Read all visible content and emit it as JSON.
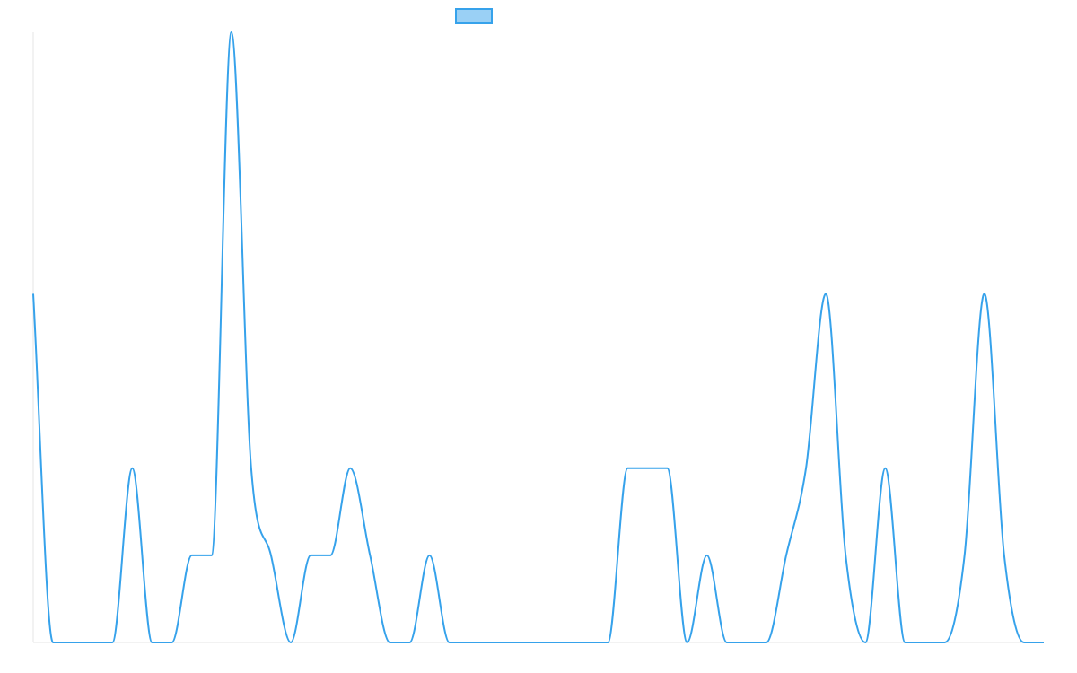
{
  "chart_data": {
    "type": "line",
    "title": "",
    "xlabel": "",
    "ylabel": "",
    "ylim": [
      0,
      7
    ],
    "grid": false,
    "legend_position": "top-center",
    "x": [
      0,
      1,
      2,
      3,
      4,
      5,
      6,
      7,
      8,
      9,
      10,
      11,
      12,
      13,
      14,
      15,
      16,
      17,
      18,
      19,
      20,
      21,
      22,
      23,
      24,
      25,
      26,
      27,
      28,
      29,
      30,
      31,
      32,
      33,
      34,
      35,
      36,
      37,
      38,
      39,
      40,
      41,
      42,
      43,
      44,
      45,
      46,
      47,
      48,
      49,
      50,
      51
    ],
    "series": [
      {
        "name": "",
        "color": "#36a2eb",
        "fill": "#9ad0f5",
        "values": [
          4,
          0,
          0,
          0,
          0,
          2,
          0,
          0,
          1,
          1,
          7,
          2,
          1,
          0,
          1,
          1,
          2,
          1,
          0,
          0,
          1,
          0,
          0,
          0,
          0,
          0,
          0,
          0,
          0,
          0,
          2,
          2,
          2,
          0,
          1,
          0,
          0,
          0,
          1,
          2,
          4,
          1,
          0,
          2,
          0,
          0,
          0,
          1,
          4,
          1,
          0,
          0
        ]
      }
    ]
  }
}
